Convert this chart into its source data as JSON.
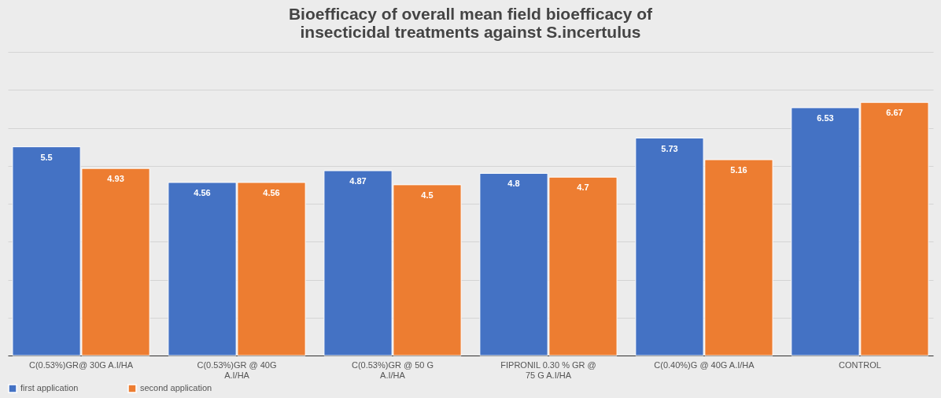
{
  "chart_data": {
    "type": "bar",
    "title": [
      "Bioefficacy of overall mean field bioefficacy of",
      "insecticidal treatments against S.incertulus"
    ],
    "categories": [
      "C(0.53%)GR@ 30G A.I/HA",
      "C(0.53%)GR @ 40G A.I/HA",
      "C(0.53%)GR @ 50 G A.I/HA",
      "FIPRONIL 0.30 % GR @ 75 G A.I/HA",
      "C(0.40%)G @ 40G A.I/HA",
      "CONTROL"
    ],
    "series": [
      {
        "name": "first application",
        "color": "#4472c4",
        "values": [
          5.5,
          4.56,
          4.87,
          4.8,
          5.73,
          6.53
        ]
      },
      {
        "name": "second application",
        "color": "#ed7d31",
        "values": [
          4.93,
          4.56,
          4.5,
          4.7,
          5.16,
          6.67
        ]
      }
    ],
    "ylim": [
      0,
      8
    ],
    "yticks": [
      0,
      1,
      2,
      3,
      4,
      5,
      6,
      7,
      8
    ],
    "grid": "y",
    "tick_labels": "x",
    "data_labels": true,
    "legend": "bottom"
  }
}
